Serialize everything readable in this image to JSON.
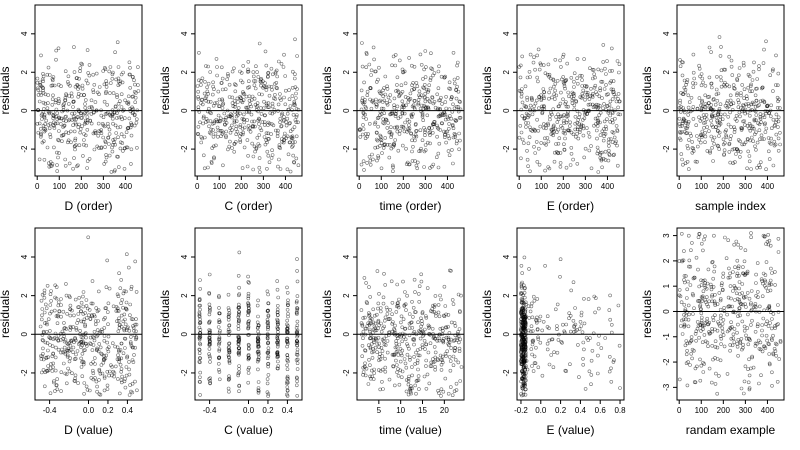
{
  "chart_data": [
    {
      "type": "scatter",
      "xlabel": "D (order)",
      "ylabel": "residuals",
      "xlim": [
        -10,
        475
      ],
      "ylim": [
        -3.4,
        5.5
      ],
      "xticks": [
        0,
        100,
        200,
        300,
        400
      ],
      "xtick_labels": [
        "0",
        "100",
        "200",
        "300",
        "400"
      ],
      "yticks": [
        -2,
        0,
        2,
        4
      ],
      "ytick_labels": [
        "-2",
        "0",
        "2",
        "4"
      ],
      "hline": 0,
      "points": {
        "dist": "uniform",
        "n": 450,
        "xmin": 0,
        "xmax": 460
      }
    },
    {
      "type": "scatter",
      "xlabel": "C (order)",
      "ylabel": "residuals",
      "xlim": [
        -10,
        475
      ],
      "ylim": [
        -3.4,
        5.5
      ],
      "xticks": [
        0,
        100,
        200,
        300,
        400
      ],
      "xtick_labels": [
        "0",
        "100",
        "200",
        "300",
        "400"
      ],
      "yticks": [
        -2,
        0,
        2,
        4
      ],
      "ytick_labels": [
        "-2",
        "0",
        "2",
        "4"
      ],
      "hline": 0,
      "points": {
        "dist": "uniform",
        "n": 450,
        "xmin": 0,
        "xmax": 460
      }
    },
    {
      "type": "scatter",
      "xlabel": "time (order)",
      "ylabel": "residuals",
      "xlim": [
        -10,
        475
      ],
      "ylim": [
        -3.4,
        5.5
      ],
      "xticks": [
        0,
        100,
        200,
        300,
        400
      ],
      "xtick_labels": [
        "0",
        "100",
        "200",
        "300",
        "400"
      ],
      "yticks": [
        -2,
        0,
        2,
        4
      ],
      "ytick_labels": [
        "-2",
        "0",
        "2",
        "4"
      ],
      "hline": 0,
      "points": {
        "dist": "uniform",
        "n": 450,
        "xmin": 0,
        "xmax": 460
      }
    },
    {
      "type": "scatter",
      "xlabel": "E (order)",
      "ylabel": "residuals",
      "xlim": [
        -10,
        475
      ],
      "ylim": [
        -3.4,
        5.5
      ],
      "xticks": [
        0,
        100,
        200,
        300,
        400
      ],
      "xtick_labels": [
        "0",
        "100",
        "200",
        "300",
        "400"
      ],
      "yticks": [
        -2,
        0,
        2,
        4
      ],
      "ytick_labels": [
        "-2",
        "0",
        "2",
        "4"
      ],
      "hline": 0,
      "points": {
        "dist": "uniform",
        "n": 450,
        "xmin": 0,
        "xmax": 460
      }
    },
    {
      "type": "scatter",
      "xlabel": "sample index",
      "ylabel": "residuals",
      "xlim": [
        -10,
        475
      ],
      "ylim": [
        -3.4,
        5.5
      ],
      "xticks": [
        0,
        100,
        200,
        300,
        400
      ],
      "xtick_labels": [
        "0",
        "100",
        "200",
        "300",
        "400"
      ],
      "yticks": [
        -2,
        0,
        2,
        4
      ],
      "ytick_labels": [
        "-2",
        "0",
        "2",
        "4"
      ],
      "hline": 0,
      "points": {
        "dist": "uniform",
        "n": 450,
        "xmin": 0,
        "xmax": 460
      }
    },
    {
      "type": "scatter",
      "xlabel": "D (value)",
      "ylabel": "residuals",
      "xlim": [
        -0.55,
        0.55
      ],
      "ylim": [
        -3.4,
        5.5
      ],
      "xticks": [
        -0.4,
        0,
        0.2,
        0.4
      ],
      "xtick_labels": [
        "-0.4",
        "0.0",
        "0.2",
        "0.4"
      ],
      "yticks": [
        -2,
        0,
        2,
        4
      ],
      "ytick_labels": [
        "-2",
        "0",
        "2",
        "4"
      ],
      "hline": 0,
      "points": {
        "dist": "uniform",
        "n": 450,
        "xmin": -0.5,
        "xmax": 0.5
      }
    },
    {
      "type": "scatter",
      "xlabel": "C (value)",
      "ylabel": "residuals",
      "xlim": [
        -0.55,
        0.55
      ],
      "ylim": [
        -3.4,
        5.5
      ],
      "xticks": [
        -0.4,
        0,
        0.2,
        0.4
      ],
      "xtick_labels": [
        "-0.4",
        "0.0",
        "0.2",
        "0.4"
      ],
      "yticks": [
        -2,
        0,
        2,
        4
      ],
      "ytick_labels": [
        "-2",
        "0",
        "2",
        "4"
      ],
      "hline": 0,
      "points": {
        "dist": "discrete",
        "n": 450,
        "levels": [
          -0.5,
          -0.4,
          -0.3,
          -0.2,
          -0.1,
          0,
          0.1,
          0.2,
          0.3,
          0.4,
          0.5
        ]
      }
    },
    {
      "type": "scatter",
      "xlabel": "time (value)",
      "ylabel": "residuals",
      "xlim": [
        0,
        24.5
      ],
      "ylim": [
        -3.4,
        5.5
      ],
      "xticks": [
        5,
        10,
        15,
        20
      ],
      "xtick_labels": [
        "5",
        "10",
        "15",
        "20"
      ],
      "yticks": [
        -2,
        0,
        2,
        4
      ],
      "ytick_labels": [
        "-2",
        "0",
        "2",
        "4"
      ],
      "hline": 0,
      "points": {
        "dist": "uniform",
        "n": 450,
        "xmin": 1,
        "xmax": 24
      }
    },
    {
      "type": "scatter",
      "xlabel": "E (value)",
      "ylabel": "residuals",
      "xlim": [
        -0.24,
        0.84
      ],
      "ylim": [
        -3.4,
        5.5
      ],
      "xticks": [
        -0.2,
        0,
        0.2,
        0.4,
        0.6,
        0.8
      ],
      "xtick_labels": [
        "-0.2",
        "0.0",
        "0.2",
        "0.4",
        "0.6",
        "0.8"
      ],
      "yticks": [
        -2,
        0,
        2,
        4
      ],
      "ytick_labels": [
        "-2",
        "0",
        "2",
        "4"
      ],
      "hline": 0,
      "points": {
        "dist": "skewed",
        "n": 450,
        "xmin": -0.2,
        "xmax": 0.8
      }
    },
    {
      "type": "scatter",
      "xlabel": "randam example",
      "ylabel": "residuals",
      "xlim": [
        -10,
        475
      ],
      "ylim": [
        -3.5,
        3.3
      ],
      "xticks": [
        0,
        100,
        200,
        300,
        400
      ],
      "xtick_labels": [
        "0",
        "100",
        "200",
        "300",
        "400"
      ],
      "yticks": [
        -3,
        -2,
        -1,
        0,
        1,
        2,
        3
      ],
      "ytick_labels": [
        "-3",
        "-2",
        "-1",
        "0",
        "1",
        "2",
        "3"
      ],
      "hline": 0,
      "points": {
        "dist": "uniform",
        "n": 450,
        "xmin": 0,
        "xmax": 460
      }
    }
  ]
}
